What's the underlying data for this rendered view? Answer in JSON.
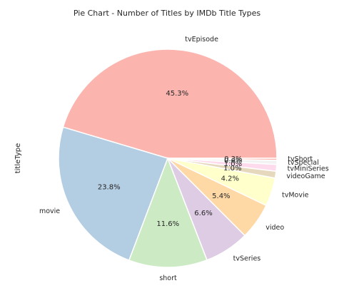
{
  "chart_data": {
    "type": "pie",
    "title": "Pie Chart - Number of Titles by IMDb Title Types",
    "ylabel": "titleType",
    "slices": [
      {
        "label": "tvEpisode",
        "value": 45.3,
        "pct_label": "45.3%",
        "color": "#fbb4ae"
      },
      {
        "label": "movie",
        "value": 23.8,
        "pct_label": "23.8%",
        "color": "#b3cde3"
      },
      {
        "label": "short",
        "value": 11.6,
        "pct_label": "11.6%",
        "color": "#ccebc5"
      },
      {
        "label": "tvSeries",
        "value": 6.6,
        "pct_label": "6.6%",
        "color": "#decbe4"
      },
      {
        "label": "video",
        "value": 5.4,
        "pct_label": "5.4%",
        "color": "#fed9a6"
      },
      {
        "label": "tvMovie",
        "value": 4.2,
        "pct_label": "4.2%",
        "color": "#ffffcc"
      },
      {
        "label": "videoGame",
        "value": 1.0,
        "pct_label": "1.0%",
        "color": "#e5d8bd"
      },
      {
        "label": "tvMiniSeries",
        "value": 1.0,
        "pct_label": "1.0%",
        "color": "#fddaec"
      },
      {
        "label": "tvSpecial",
        "value": 0.6,
        "pct_label": "0.6%",
        "color": "#f2f2f2"
      },
      {
        "label": "tvShort",
        "value": 0.3,
        "pct_label": "0.3%",
        "color": "#fbb4ae"
      }
    ]
  }
}
